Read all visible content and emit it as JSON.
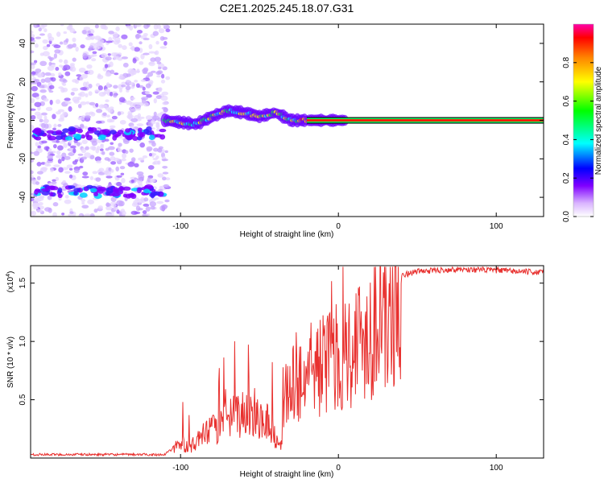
{
  "title": "C2E1.2025.245.18.07.G31",
  "chart_data": [
    {
      "type": "heatmap",
      "xlabel": "Height of straight line (km)",
      "ylabel": "Frequency (Hz)",
      "xlim": [
        -195,
        130
      ],
      "ylim": [
        -50,
        50
      ],
      "xticks": [
        -100,
        0,
        100
      ],
      "yticks": [
        -40,
        -20,
        0,
        20,
        40
      ],
      "colorbar": {
        "label": "Normalized spectral amplitude",
        "range": [
          0,
          1
        ],
        "ticks": [
          0.0,
          0.2,
          0.4,
          0.6,
          0.8
        ],
        "colors": [
          "#ffffff",
          "#cc99ff",
          "#7f00ff",
          "#0000ff",
          "#00ffff",
          "#00ff00",
          "#ffff00",
          "#ff7f00",
          "#ff0000"
        ]
      },
      "ridge": [
        {
          "x": -110,
          "y": 0
        },
        {
          "x": -100,
          "y": -1
        },
        {
          "x": -90,
          "y": -2
        },
        {
          "x": -80,
          "y": 2
        },
        {
          "x": -70,
          "y": 5
        },
        {
          "x": -60,
          "y": 4
        },
        {
          "x": -50,
          "y": 2
        },
        {
          "x": -40,
          "y": 4
        },
        {
          "x": -30,
          "y": 0
        },
        {
          "x": -20,
          "y": 0
        },
        {
          "x": 0,
          "y": 0
        },
        {
          "x": 130,
          "y": 0
        }
      ],
      "bands": [
        {
          "label": "noise band",
          "freq": -7
        },
        {
          "label": "noise band",
          "freq": -37
        }
      ]
    },
    {
      "type": "line",
      "xlabel": "Height of straight line (km)",
      "ylabel": "SNR (10 * v/v)",
      "yscale_label": "(x10",
      "yscale_exp": "4",
      "yscale_close": ")",
      "xlim": [
        -195,
        130
      ],
      "ylim": [
        0,
        1.65
      ],
      "xticks": [
        -100,
        0,
        100
      ],
      "yticks": [
        0.5,
        1.0,
        1.5
      ],
      "ytick_labels": [
        "0.5",
        "1.0",
        "1.5"
      ],
      "color": "#e8302e",
      "envelope": [
        {
          "x": -195,
          "y": 0.03
        },
        {
          "x": -110,
          "y": 0.03
        },
        {
          "x": -105,
          "y": 0.08
        },
        {
          "x": -100,
          "y": 0.18
        },
        {
          "x": -95,
          "y": 0.1
        },
        {
          "x": -85,
          "y": 0.25
        },
        {
          "x": -75,
          "y": 0.35
        },
        {
          "x": -65,
          "y": 0.45
        },
        {
          "x": -55,
          "y": 0.5
        },
        {
          "x": -45,
          "y": 0.4
        },
        {
          "x": -37,
          "y": 0.12
        },
        {
          "x": -33,
          "y": 0.7
        },
        {
          "x": -25,
          "y": 0.85
        },
        {
          "x": -15,
          "y": 0.95
        },
        {
          "x": -5,
          "y": 1.05
        },
        {
          "x": 5,
          "y": 1.15
        },
        {
          "x": 15,
          "y": 1.3
        },
        {
          "x": 25,
          "y": 1.45
        },
        {
          "x": 35,
          "y": 1.55
        },
        {
          "x": 50,
          "y": 1.6
        },
        {
          "x": 75,
          "y": 1.62
        },
        {
          "x": 100,
          "y": 1.61
        },
        {
          "x": 130,
          "y": 1.59
        }
      ]
    }
  ]
}
